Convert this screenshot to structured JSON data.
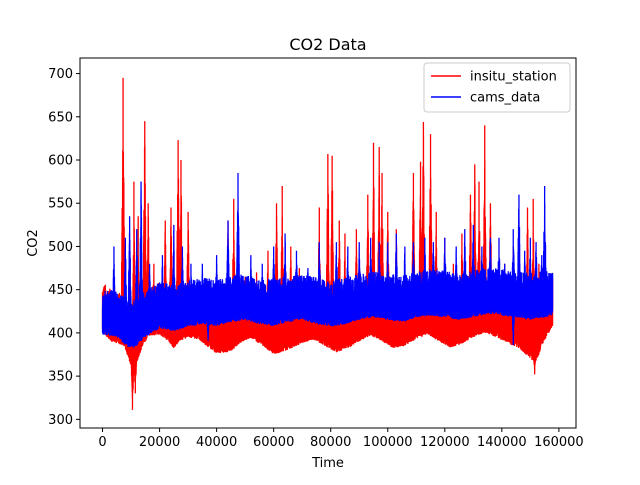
{
  "chart_data": {
    "type": "line",
    "title": "CO2 Data",
    "xlabel": "Time",
    "ylabel": "CO2",
    "xlim": [
      -7900,
      166000
    ],
    "ylim": [
      290,
      718
    ],
    "xticks": [
      0,
      20000,
      40000,
      60000,
      80000,
      100000,
      120000,
      140000,
      160000
    ],
    "xtick_labels": [
      "0",
      "20000",
      "40000",
      "60000",
      "80000",
      "100000",
      "120000",
      "140000",
      "160000"
    ],
    "yticks": [
      300,
      350,
      400,
      450,
      500,
      550,
      600,
      650,
      700
    ],
    "ytick_labels": [
      "300",
      "350",
      "400",
      "450",
      "500",
      "550",
      "600",
      "650",
      "700"
    ],
    "grid": false,
    "legend_position": "upper right",
    "series": [
      {
        "name": "insitu_station",
        "color": "#ff0000",
        "x_range": [
          0,
          157800
        ],
        "baseline": [
          [
            0,
            410
          ],
          [
            3000,
            400
          ],
          [
            6000,
            397
          ],
          [
            8000,
            392
          ],
          [
            10000,
            370
          ],
          [
            11000,
            360
          ],
          [
            12000,
            375
          ],
          [
            14000,
            395
          ],
          [
            16000,
            405
          ],
          [
            20000,
            408
          ],
          [
            23000,
            400
          ],
          [
            25000,
            392
          ],
          [
            27000,
            400
          ],
          [
            30000,
            405
          ],
          [
            34000,
            402
          ],
          [
            37000,
            393
          ],
          [
            40000,
            386
          ],
          [
            45000,
            388
          ],
          [
            48000,
            398
          ],
          [
            52000,
            404
          ],
          [
            56000,
            395
          ],
          [
            60000,
            385
          ],
          [
            65000,
            390
          ],
          [
            70000,
            398
          ],
          [
            74000,
            402
          ],
          [
            78000,
            395
          ],
          [
            82000,
            387
          ],
          [
            86000,
            392
          ],
          [
            90000,
            400
          ],
          [
            94000,
            407
          ],
          [
            98000,
            400
          ],
          [
            102000,
            392
          ],
          [
            106000,
            395
          ],
          [
            110000,
            403
          ],
          [
            114000,
            408
          ],
          [
            118000,
            400
          ],
          [
            122000,
            393
          ],
          [
            126000,
            397
          ],
          [
            130000,
            405
          ],
          [
            134000,
            410
          ],
          [
            138000,
            405
          ],
          [
            142000,
            398
          ],
          [
            146000,
            392
          ],
          [
            150000,
            380
          ],
          [
            152000,
            375
          ],
          [
            154000,
            395
          ],
          [
            156000,
            408
          ],
          [
            157800,
            415
          ]
        ],
        "spikes": [
          [
            7200,
            695
          ],
          [
            11000,
            575
          ],
          [
            12500,
            535
          ],
          [
            14800,
            645
          ],
          [
            16000,
            550
          ],
          [
            18000,
            480
          ],
          [
            22000,
            530
          ],
          [
            24000,
            545
          ],
          [
            26500,
            623
          ],
          [
            27500,
            600
          ],
          [
            30000,
            540
          ],
          [
            33000,
            445
          ],
          [
            38000,
            450
          ],
          [
            44000,
            530
          ],
          [
            46000,
            555
          ],
          [
            50000,
            465
          ],
          [
            54000,
            470
          ],
          [
            58000,
            495
          ],
          [
            61000,
            550
          ],
          [
            63000,
            570
          ],
          [
            66000,
            500
          ],
          [
            69000,
            475
          ],
          [
            76000,
            545
          ],
          [
            79000,
            607
          ],
          [
            80500,
            605
          ],
          [
            83000,
            530
          ],
          [
            85000,
            515
          ],
          [
            89000,
            520
          ],
          [
            93000,
            560
          ],
          [
            95000,
            620
          ],
          [
            97000,
            615
          ],
          [
            98000,
            585
          ],
          [
            100000,
            540
          ],
          [
            103000,
            520
          ],
          [
            106000,
            475
          ],
          [
            109000,
            585
          ],
          [
            111500,
            598
          ],
          [
            112500,
            644
          ],
          [
            115000,
            630
          ],
          [
            117000,
            540
          ],
          [
            120000,
            510
          ],
          [
            123000,
            480
          ],
          [
            126000,
            515
          ],
          [
            129000,
            560
          ],
          [
            130500,
            595
          ],
          [
            132000,
            575
          ],
          [
            134000,
            640
          ],
          [
            136000,
            550
          ],
          [
            141000,
            480
          ],
          [
            144000,
            500
          ],
          [
            149000,
            545
          ],
          [
            151000,
            555
          ],
          [
            153000,
            480
          ],
          [
            155000,
            520
          ]
        ],
        "dips": [
          [
            10500,
            311
          ],
          [
            11500,
            330
          ],
          [
            151500,
            352
          ]
        ],
        "noise": [
          12,
          38
        ]
      },
      {
        "name": "cams_data",
        "color": "#0000ff",
        "x_range": [
          0,
          157800
        ],
        "baseline": [
          [
            0,
            408
          ],
          [
            5000,
            405
          ],
          [
            9000,
            393
          ],
          [
            12000,
            395
          ],
          [
            15000,
            405
          ],
          [
            20000,
            415
          ],
          [
            25000,
            412
          ],
          [
            30000,
            417
          ],
          [
            35000,
            420
          ],
          [
            40000,
            418
          ],
          [
            45000,
            422
          ],
          [
            50000,
            425
          ],
          [
            55000,
            420
          ],
          [
            60000,
            418
          ],
          [
            65000,
            422
          ],
          [
            70000,
            425
          ],
          [
            75000,
            420
          ],
          [
            80000,
            417
          ],
          [
            85000,
            420
          ],
          [
            90000,
            425
          ],
          [
            95000,
            428
          ],
          [
            100000,
            425
          ],
          [
            105000,
            422
          ],
          [
            110000,
            428
          ],
          [
            115000,
            430
          ],
          [
            120000,
            428
          ],
          [
            125000,
            425
          ],
          [
            130000,
            428
          ],
          [
            135000,
            432
          ],
          [
            140000,
            430
          ],
          [
            145000,
            428
          ],
          [
            150000,
            425
          ],
          [
            155000,
            428
          ],
          [
            157800,
            430
          ]
        ],
        "spikes": [
          [
            4000,
            500
          ],
          [
            8000,
            510
          ],
          [
            9500,
            535
          ],
          [
            12000,
            520
          ],
          [
            13500,
            575
          ],
          [
            16500,
            480
          ],
          [
            21000,
            490
          ],
          [
            25000,
            525
          ],
          [
            28000,
            500
          ],
          [
            31000,
            480
          ],
          [
            35000,
            480
          ],
          [
            40000,
            490
          ],
          [
            44000,
            530
          ],
          [
            47500,
            585
          ],
          [
            52000,
            490
          ],
          [
            56000,
            480
          ],
          [
            60000,
            500
          ],
          [
            64000,
            515
          ],
          [
            68000,
            495
          ],
          [
            72000,
            475
          ],
          [
            76000,
            505
          ],
          [
            82000,
            505
          ],
          [
            86000,
            500
          ],
          [
            90000,
            505
          ],
          [
            94000,
            510
          ],
          [
            97000,
            505
          ],
          [
            100000,
            505
          ],
          [
            103000,
            515
          ],
          [
            106000,
            500
          ],
          [
            109000,
            505
          ],
          [
            113000,
            510
          ],
          [
            116000,
            505
          ],
          [
            120000,
            510
          ],
          [
            124000,
            500
          ],
          [
            127000,
            520
          ],
          [
            130000,
            525
          ],
          [
            133000,
            500
          ],
          [
            136000,
            510
          ],
          [
            139000,
            510
          ],
          [
            141000,
            480
          ],
          [
            144000,
            520
          ],
          [
            146000,
            560
          ],
          [
            148000,
            495
          ],
          [
            150000,
            510
          ],
          [
            152000,
            505
          ],
          [
            154000,
            490
          ],
          [
            155000,
            570
          ]
        ],
        "dips": [
          [
            11000,
            383
          ],
          [
            37000,
            391
          ],
          [
            144000,
            386
          ]
        ],
        "noise": [
          12,
          32
        ]
      }
    ]
  }
}
